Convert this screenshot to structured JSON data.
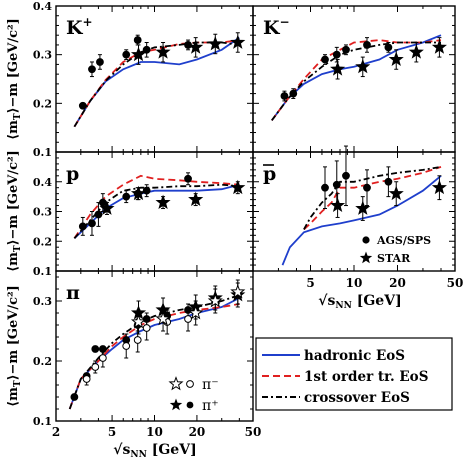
{
  "chart_data": [
    {
      "id": "kplus",
      "type": "line",
      "label": "K⁺",
      "xscale": "log",
      "xlim": [
        2,
        50
      ],
      "ylim": [
        0.1,
        0.4
      ],
      "yticks": [
        0.1,
        0.2,
        0.3,
        0.4
      ],
      "series": [
        {
          "name": "hadronic EoS",
          "x": [
            2.7,
            3.5,
            4.5,
            6,
            8,
            10,
            15,
            20,
            30,
            40
          ],
          "values": [
            0.152,
            0.205,
            0.245,
            0.27,
            0.285,
            0.285,
            0.28,
            0.29,
            0.31,
            0.335
          ]
        },
        {
          "name": "1st order tr. EoS",
          "x": [
            2.7,
            3.5,
            4.5,
            6,
            8,
            10,
            15,
            20,
            30,
            40
          ],
          "values": [
            0.152,
            0.205,
            0.248,
            0.285,
            0.305,
            0.31,
            0.322,
            0.325,
            0.325,
            0.33
          ]
        },
        {
          "name": "crossover EoS",
          "x": [
            2.7,
            3.5,
            4.5,
            6,
            8,
            10,
            15,
            20,
            30,
            40
          ],
          "values": [
            0.152,
            0.205,
            0.246,
            0.28,
            0.305,
            0.315,
            0.32,
            0.325,
            0.325,
            0.32
          ]
        }
      ],
      "points": [
        {
          "set": "AGS/SPS",
          "x": [
            3.1,
            3.6,
            4.1,
            6.3,
            7.6,
            8.8,
            17.3
          ],
          "y": [
            0.195,
            0.27,
            0.285,
            0.3,
            0.33,
            0.31,
            0.32
          ],
          "err": [
            0.005,
            0.015,
            0.015,
            0.01,
            0.01,
            0.015,
            0.01
          ]
        },
        {
          "set": "STAR",
          "x": [
            7.7,
            11.5,
            19.6,
            27,
            39
          ],
          "y": [
            0.3,
            0.305,
            0.315,
            0.322,
            0.325
          ],
          "err": [
            0.02,
            0.02,
            0.02,
            0.02,
            0.02
          ]
        }
      ]
    },
    {
      "id": "kminus",
      "type": "line",
      "label": "K⁻",
      "xscale": "log",
      "xlim": [
        2,
        50
      ],
      "ylim": [
        0.1,
        0.4
      ],
      "series": [
        {
          "name": "hadronic EoS",
          "x": [
            2.7,
            3.5,
            4.5,
            6,
            8,
            10,
            15,
            20,
            30,
            40
          ],
          "values": [
            0.165,
            0.21,
            0.24,
            0.26,
            0.27,
            0.275,
            0.29,
            0.31,
            0.325,
            0.34
          ]
        },
        {
          "name": "1st order tr. EoS",
          "x": [
            2.7,
            3.5,
            4.5,
            6,
            8,
            10,
            15,
            20,
            30,
            40
          ],
          "values": [
            0.165,
            0.21,
            0.25,
            0.29,
            0.31,
            0.325,
            0.33,
            0.325,
            0.325,
            0.33
          ]
        },
        {
          "name": "crossover EoS",
          "x": [
            2.7,
            3.5,
            4.5,
            6,
            8,
            10,
            15,
            20,
            30,
            40
          ],
          "values": [
            0.165,
            0.21,
            0.245,
            0.275,
            0.3,
            0.31,
            0.32,
            0.325,
            0.325,
            0.325
          ]
        }
      ],
      "points": [
        {
          "set": "AGS/SPS",
          "x": [
            3.3,
            3.8,
            6.3,
            7.6,
            8.8,
            12.3,
            17.3
          ],
          "y": [
            0.215,
            0.22,
            0.29,
            0.3,
            0.31,
            0.32,
            0.315
          ],
          "err": [
            0.01,
            0.01,
            0.01,
            0.015,
            0.01,
            0.015,
            0.01
          ]
        },
        {
          "set": "STAR",
          "x": [
            7.7,
            11.5,
            19.6,
            27,
            39
          ],
          "y": [
            0.27,
            0.275,
            0.29,
            0.305,
            0.315
          ],
          "err": [
            0.02,
            0.02,
            0.02,
            0.02,
            0.02
          ]
        }
      ]
    },
    {
      "id": "p",
      "type": "line",
      "label": "p",
      "xscale": "log",
      "xlim": [
        2,
        50
      ],
      "ylim": [
        0.1,
        0.5
      ],
      "yticks": [
        0.1,
        0.2,
        0.3,
        0.4
      ],
      "series": [
        {
          "name": "hadronic EoS",
          "x": [
            2.7,
            3.5,
            4.5,
            6,
            8,
            10,
            15,
            20,
            30,
            40
          ],
          "values": [
            0.21,
            0.26,
            0.31,
            0.345,
            0.36,
            0.37,
            0.37,
            0.37,
            0.375,
            0.39
          ]
        },
        {
          "name": "1st order tr. EoS",
          "x": [
            2.7,
            3.5,
            4.5,
            6,
            8,
            10,
            15,
            20,
            30,
            40
          ],
          "values": [
            0.21,
            0.29,
            0.35,
            0.39,
            0.42,
            0.41,
            0.405,
            0.4,
            0.395,
            0.39
          ]
        },
        {
          "name": "crossover EoS",
          "x": [
            2.7,
            3.5,
            4.5,
            6,
            8,
            10,
            15,
            20,
            30,
            40
          ],
          "values": [
            0.21,
            0.27,
            0.33,
            0.37,
            0.38,
            0.38,
            0.385,
            0.385,
            0.39,
            0.385
          ]
        }
      ],
      "points": [
        {
          "set": "AGS/SPS",
          "x": [
            3.1,
            3.6,
            4.0,
            4.3,
            6.3,
            7.6,
            8.8,
            17.3
          ],
          "y": [
            0.25,
            0.26,
            0.29,
            0.33,
            0.35,
            0.36,
            0.37,
            0.41
          ],
          "err": [
            0.03,
            0.04,
            0.04,
            0.03,
            0.02,
            0.02,
            0.02,
            0.02
          ]
        },
        {
          "set": "STAR",
          "x": [
            4.6,
            7.7,
            11.5,
            19.6,
            39
          ],
          "y": [
            0.31,
            0.36,
            0.33,
            0.34,
            0.38
          ],
          "err": [
            0.02,
            0.02,
            0.02,
            0.02,
            0.02
          ]
        }
      ]
    },
    {
      "id": "pbar",
      "type": "line",
      "label": "p̄",
      "xscale": "log",
      "xlim": [
        2,
        50
      ],
      "ylim": [
        0.1,
        0.5
      ],
      "series": [
        {
          "name": "hadronic EoS",
          "x": [
            3.2,
            3.6,
            4.5,
            6,
            8,
            10,
            15,
            20,
            30,
            40
          ],
          "values": [
            0.12,
            0.18,
            0.23,
            0.25,
            0.26,
            0.27,
            0.29,
            0.32,
            0.37,
            0.42
          ]
        },
        {
          "name": "1st order tr. EoS",
          "x": [
            4.5,
            5,
            6,
            7,
            8,
            10,
            15,
            20,
            30,
            40
          ],
          "values": [
            0.24,
            0.26,
            0.3,
            0.33,
            0.38,
            0.38,
            0.4,
            0.41,
            0.43,
            0.45
          ]
        },
        {
          "name": "crossover EoS",
          "x": [
            4.5,
            5,
            6,
            7,
            8,
            10,
            15,
            20,
            30,
            40
          ],
          "values": [
            0.24,
            0.28,
            0.33,
            0.36,
            0.4,
            0.4,
            0.42,
            0.43,
            0.44,
            0.45
          ]
        }
      ],
      "points": [
        {
          "set": "AGS/SPS",
          "x": [
            6.3,
            7.6,
            8.8,
            12.3,
            17.3
          ],
          "y": [
            0.38,
            0.39,
            0.42,
            0.38,
            0.4
          ],
          "err": [
            0.07,
            0.08,
            0.1,
            0.06,
            0.05
          ]
        },
        {
          "set": "STAR",
          "x": [
            7.7,
            11.5,
            19.6,
            39
          ],
          "y": [
            0.32,
            0.31,
            0.36,
            0.38
          ],
          "err": [
            0.04,
            0.04,
            0.04,
            0.04
          ]
        }
      ],
      "legend": [
        {
          "marker": "circle",
          "label": "AGS/SPS"
        },
        {
          "marker": "star",
          "label": "STAR"
        }
      ]
    },
    {
      "id": "pi",
      "type": "line",
      "label": "π",
      "xscale": "log",
      "xlim": [
        2,
        50
      ],
      "ylim": [
        0.1,
        0.35
      ],
      "yticks": [
        0.1,
        0.2,
        0.3
      ],
      "series": [
        {
          "name": "hadronic EoS",
          "x": [
            2.5,
            3,
            4,
            5,
            6,
            8,
            10,
            15,
            20,
            30,
            40
          ],
          "values": [
            0.12,
            0.17,
            0.2,
            0.22,
            0.235,
            0.25,
            0.26,
            0.27,
            0.28,
            0.29,
            0.305
          ]
        },
        {
          "name": "1st order tr. EoS",
          "x": [
            2.5,
            3,
            4,
            5,
            6,
            8,
            10,
            15,
            20,
            30,
            40
          ],
          "values": [
            0.12,
            0.17,
            0.2,
            0.225,
            0.24,
            0.26,
            0.27,
            0.28,
            0.285,
            0.29,
            0.295
          ]
        },
        {
          "name": "crossover EoS",
          "x": [
            2.5,
            3,
            4,
            5,
            6,
            8,
            10,
            15,
            20,
            30,
            40
          ],
          "values": [
            0.12,
            0.17,
            0.205,
            0.23,
            0.245,
            0.265,
            0.275,
            0.285,
            0.29,
            0.3,
            0.31
          ]
        }
      ],
      "points": [
        {
          "set": "π⁺ AGS/SPS",
          "filled": true,
          "marker": "circle",
          "x": [
            2.7,
            3.3,
            3.8,
            4.3,
            6.3,
            7.6,
            8.8,
            12.3,
            17.3
          ],
          "y": [
            0.14,
            0.175,
            0.22,
            0.22,
            0.235,
            0.26,
            0.27,
            0.275,
            0.285
          ],
          "err": [
            0.005,
            0.005,
            0.005,
            0.005,
            0.01,
            0.01,
            0.01,
            0.01,
            0.01
          ]
        },
        {
          "set": "π⁻ AGS/SPS",
          "filled": false,
          "marker": "circle",
          "x": [
            3.3,
            3.8,
            4.3,
            6.3,
            7.6,
            8.8,
            12.3,
            17.3
          ],
          "y": [
            0.17,
            0.19,
            0.205,
            0.225,
            0.235,
            0.255,
            0.265,
            0.27
          ],
          "err": [
            0.01,
            0.01,
            0.015,
            0.02,
            0.02,
            0.02,
            0.02,
            0.02
          ]
        },
        {
          "set": "π⁺ STAR",
          "filled": true,
          "marker": "star",
          "x": [
            7.7,
            11.5,
            19.6,
            27,
            39
          ],
          "y": [
            0.28,
            0.285,
            0.29,
            0.305,
            0.31
          ],
          "err": [
            0.02,
            0.02,
            0.02,
            0.02,
            0.02
          ]
        },
        {
          "set": "π⁻ STAR",
          "filled": false,
          "marker": "star",
          "x": [
            7.7,
            11.5,
            19.6,
            27,
            39
          ],
          "y": [
            0.265,
            0.27,
            0.28,
            0.3,
            0.315
          ],
          "err": [
            0.02,
            0.02,
            0.02,
            0.02,
            0.02
          ]
        }
      ],
      "legend": [
        {
          "markers": [
            "star-open",
            "circle-open"
          ],
          "label": "π⁻"
        },
        {
          "markers": [
            "star",
            "circle"
          ],
          "label": "π⁺"
        }
      ]
    }
  ],
  "axes": {
    "ylabel": "⟨m_T⟩−m [GeV/c²]",
    "xlabel": "√s_NN [GeV]",
    "xticks": [
      2,
      5,
      10,
      20,
      50
    ],
    "ytick_fmt": 1
  },
  "legend": [
    {
      "name": "hadronic EoS",
      "color": "#1f3fcc",
      "dash": "solid"
    },
    {
      "name": "1st order tr. EoS",
      "color": "#e02020",
      "dash": "dashed"
    },
    {
      "name": "crossover EoS",
      "color": "#000000",
      "dash": "dashdot"
    }
  ],
  "colors": {
    "hadronic": "#1f3fcc",
    "first_order": "#e02020",
    "crossover": "#000000"
  }
}
